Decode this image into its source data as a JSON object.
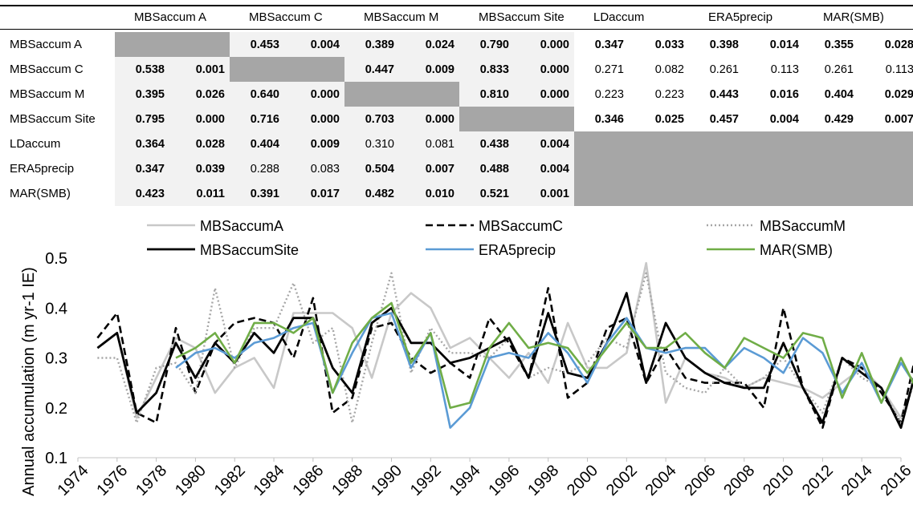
{
  "table": {
    "columns": [
      "MBSaccum A",
      "MBSaccum C",
      "MBSaccum M",
      "MBSaccum Site",
      "LDaccum",
      "ERA5precip",
      "MAR(SMB)"
    ],
    "rows": [
      {
        "label": "MBSaccum A",
        "cells": [
          null,
          [
            "0.453",
            "0.004"
          ],
          [
            "0.389",
            "0.024"
          ],
          [
            "0.790",
            "0.000"
          ],
          [
            "0.347",
            "0.033"
          ],
          [
            "0.398",
            "0.014"
          ],
          [
            "0.355",
            "0.028"
          ]
        ]
      },
      {
        "label": "MBSaccum C",
        "cells": [
          [
            "0.538",
            "0.001"
          ],
          null,
          [
            "0.447",
            "0.009"
          ],
          [
            "0.833",
            "0.000"
          ],
          [
            "0.271",
            "0.082"
          ],
          [
            "0.261",
            "0.113"
          ],
          [
            "0.261",
            "0.113"
          ]
        ]
      },
      {
        "label": "MBSaccum M",
        "cells": [
          [
            "0.395",
            "0.026"
          ],
          [
            "0.640",
            "0.000"
          ],
          null,
          [
            "0.810",
            "0.000"
          ],
          [
            "0.223",
            "0.223"
          ],
          [
            "0.443",
            "0.016"
          ],
          [
            "0.404",
            "0.029"
          ]
        ]
      },
      {
        "label": "MBSaccum Site",
        "cells": [
          [
            "0.795",
            "0.000"
          ],
          [
            "0.716",
            "0.000"
          ],
          [
            "0.703",
            "0.000"
          ],
          null,
          [
            "0.346",
            "0.025"
          ],
          [
            "0.457",
            "0.004"
          ],
          [
            "0.429",
            "0.007"
          ]
        ]
      },
      {
        "label": "LDaccum",
        "cells": [
          [
            "0.364",
            "0.028"
          ],
          [
            "0.404",
            "0.009"
          ],
          [
            "0.310",
            "0.081"
          ],
          [
            "0.438",
            "0.004"
          ],
          null,
          null,
          null
        ]
      },
      {
        "label": "ERA5precip",
        "cells": [
          [
            "0.347",
            "0.039"
          ],
          [
            "0.288",
            "0.083"
          ],
          [
            "0.504",
            "0.007"
          ],
          [
            "0.488",
            "0.004"
          ],
          null,
          null,
          null
        ]
      },
      {
        "label": "MAR(SMB)",
        "cells": [
          [
            "0.423",
            "0.011"
          ],
          [
            "0.391",
            "0.017"
          ],
          [
            "0.482",
            "0.010"
          ],
          [
            "0.521",
            "0.001"
          ],
          null,
          null,
          null
        ]
      }
    ],
    "bold_below_p": 0.05,
    "colors": {
      "diagonal": "#a6a6a6",
      "lower_block": "#f2f2f2",
      "empty_block": "#a6a6a6"
    }
  },
  "chart_data": {
    "type": "line",
    "ylabel": "Annual accumulation (m yr-1 IE)",
    "ylim": [
      0.1,
      0.5
    ],
    "yticks": [
      "0.1",
      "0.2",
      "0.3",
      "0.4",
      "0.5"
    ],
    "xlim": [
      1974,
      2016
    ],
    "xticks": [
      "1974",
      "1976",
      "1978",
      "1980",
      "1982",
      "1984",
      "1986",
      "1988",
      "1990",
      "1992",
      "1994",
      "1996",
      "1998",
      "2000",
      "2002",
      "2004",
      "2006",
      "2008",
      "2010",
      "2012",
      "2014",
      "2016"
    ],
    "grid": false,
    "legend_position": "top",
    "series": [
      {
        "name": "MBSaccumA",
        "color": "#c8c8c8",
        "style": "solid",
        "start": 1975,
        "values": [
          0.32,
          0.35,
          0.18,
          0.26,
          0.34,
          0.32,
          0.23,
          0.28,
          0.3,
          0.24,
          0.39,
          0.39,
          0.39,
          0.36,
          0.26,
          0.39,
          0.43,
          0.4,
          0.32,
          0.34,
          0.3,
          0.26,
          0.31,
          0.25,
          0.37,
          0.28,
          0.28,
          0.31,
          0.49,
          0.21,
          0.3,
          0.27,
          0.26,
          0.24,
          0.26,
          0.25,
          0.24,
          0.22,
          0.25,
          0.28,
          0.24,
          0.18,
          0.29,
          0.27
        ]
      },
      {
        "name": "MBSaccumC",
        "color": "#000000",
        "style": "dashed",
        "start": 1975,
        "values": [
          0.34,
          0.39,
          0.19,
          0.17,
          0.36,
          0.23,
          0.33,
          0.37,
          0.38,
          0.37,
          0.3,
          0.42,
          0.19,
          0.22,
          0.36,
          0.37,
          0.3,
          0.27,
          0.29,
          0.26,
          0.38,
          0.33,
          0.26,
          0.44,
          0.22,
          0.25,
          0.36,
          0.38,
          0.25,
          0.32,
          0.26,
          0.25,
          0.25,
          0.25,
          0.2,
          0.4,
          0.24,
          0.16,
          0.3,
          0.28,
          0.23,
          0.17,
          0.35,
          0.23
        ]
      },
      {
        "name": "MBSaccumM",
        "color": "#a6a6a6",
        "style": "dotted",
        "start": 1975,
        "values": [
          0.3,
          0.3,
          0.17,
          0.28,
          0.29,
          0.23,
          0.44,
          0.28,
          0.36,
          0.36,
          0.45,
          0.33,
          0.36,
          0.17,
          0.33,
          0.47,
          0.27,
          0.36,
          0.31,
          0.31,
          0.3,
          0.34,
          0.26,
          0.28,
          0.27,
          0.29,
          0.34,
          0.32,
          0.47,
          0.27,
          0.24,
          0.23,
          0.28,
          0.24,
          0.26,
          0.3,
          0.24,
          0.19,
          0.3,
          0.26,
          0.24,
          0.17,
          0.29,
          0.26
        ]
      },
      {
        "name": "MBSaccumSite",
        "color": "#000000",
        "style": "solid",
        "start": 1975,
        "values": [
          0.32,
          0.35,
          0.19,
          0.23,
          0.33,
          0.26,
          0.33,
          0.29,
          0.35,
          0.31,
          0.38,
          0.38,
          0.28,
          0.23,
          0.37,
          0.4,
          0.33,
          0.33,
          0.29,
          0.3,
          0.32,
          0.34,
          0.26,
          0.39,
          0.27,
          0.26,
          0.33,
          0.43,
          0.25,
          0.37,
          0.3,
          0.27,
          0.25,
          0.24,
          0.24,
          0.33,
          0.24,
          0.17,
          0.3,
          0.27,
          0.24,
          0.16,
          0.31,
          0.25
        ]
      },
      {
        "name": "ERA5precip",
        "color": "#5b9bd5",
        "style": "solid",
        "start": 1979,
        "values": [
          0.28,
          0.31,
          0.32,
          0.3,
          0.33,
          0.34,
          0.36,
          0.37,
          0.23,
          0.31,
          0.38,
          0.39,
          0.28,
          0.35,
          0.16,
          0.2,
          0.3,
          0.31,
          0.3,
          0.35,
          0.31,
          0.25,
          0.33,
          0.38,
          0.32,
          0.31,
          0.32,
          0.32,
          0.28,
          0.32,
          0.3,
          0.27,
          0.34,
          0.31,
          0.23,
          0.29,
          0.21,
          0.29,
          0.23
        ]
      },
      {
        "name": "MAR(SMB)",
        "color": "#70ad47",
        "style": "solid",
        "start": 1979,
        "values": [
          0.3,
          0.32,
          0.35,
          0.29,
          0.37,
          0.37,
          0.35,
          0.38,
          0.23,
          0.33,
          0.38,
          0.41,
          0.29,
          0.35,
          0.2,
          0.21,
          0.32,
          0.37,
          0.32,
          0.33,
          0.32,
          0.27,
          0.32,
          0.37,
          0.32,
          0.32,
          0.35,
          0.31,
          0.28,
          0.34,
          0.32,
          0.3,
          0.35,
          0.34,
          0.22,
          0.31,
          0.21,
          0.3,
          0.22
        ]
      }
    ]
  }
}
